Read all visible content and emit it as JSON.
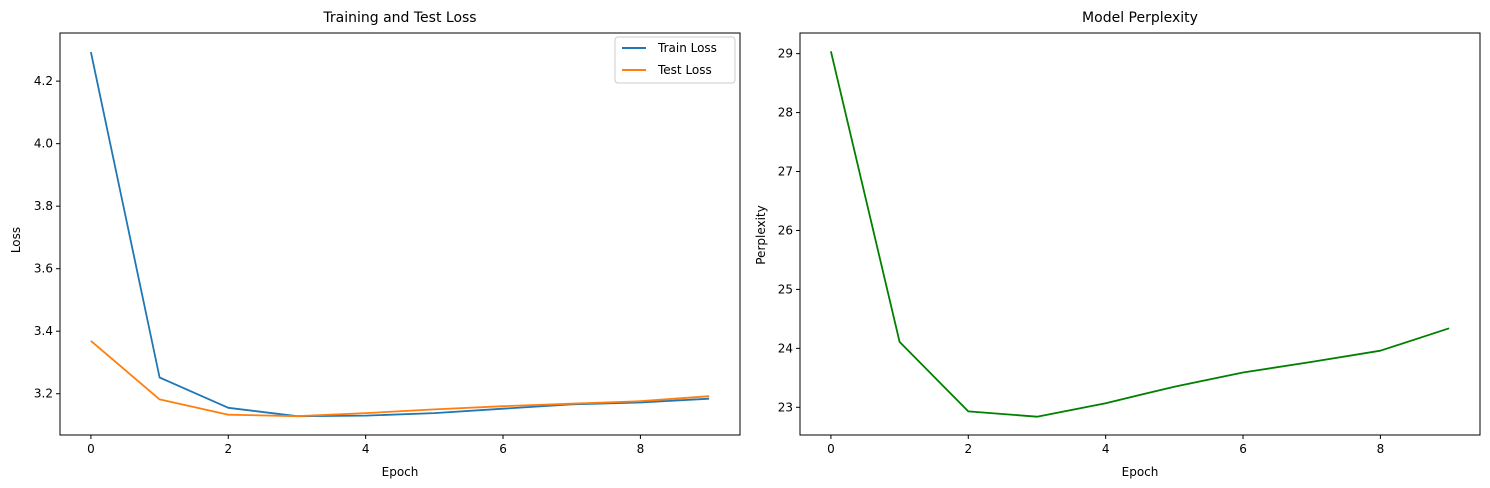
{
  "chart_data": [
    {
      "type": "line",
      "title": "Training and Test Loss",
      "xlabel": "Epoch",
      "ylabel": "Loss",
      "xlim": [
        -0.45,
        9.45
      ],
      "ylim": [
        3.068,
        4.354
      ],
      "xticks": [
        0,
        2,
        4,
        6,
        8
      ],
      "yticks": [
        3.2,
        3.4,
        3.6,
        3.8,
        4.0,
        4.2
      ],
      "legend": "top-right",
      "grid": false,
      "x": [
        0,
        1,
        2,
        3,
        4,
        5,
        6,
        7,
        8,
        9
      ],
      "series": [
        {
          "name": "Train Loss",
          "color": "#1f77b4",
          "values": [
            4.293,
            3.252,
            3.155,
            3.128,
            3.13,
            3.138,
            3.152,
            3.166,
            3.172,
            3.184
          ]
        },
        {
          "name": "Test Loss",
          "color": "#ff7f0e",
          "values": [
            3.369,
            3.182,
            3.133,
            3.128,
            3.138,
            3.15,
            3.16,
            3.168,
            3.176,
            3.192
          ]
        }
      ]
    },
    {
      "type": "line",
      "title": "Model Perplexity",
      "xlabel": "Epoch",
      "ylabel": "Perplexity",
      "xlim": [
        -0.45,
        9.45
      ],
      "ylim": [
        22.53,
        29.35
      ],
      "xticks": [
        0,
        2,
        4,
        6,
        8
      ],
      "yticks": [
        23,
        24,
        25,
        26,
        27,
        28,
        29
      ],
      "grid": false,
      "x": [
        0,
        1,
        2,
        3,
        4,
        5,
        6,
        7,
        8,
        9
      ],
      "series": [
        {
          "color": "#008000",
          "values": [
            29.04,
            24.11,
            22.93,
            22.84,
            23.07,
            23.35,
            23.59,
            23.77,
            23.96,
            24.34
          ]
        }
      ]
    }
  ]
}
